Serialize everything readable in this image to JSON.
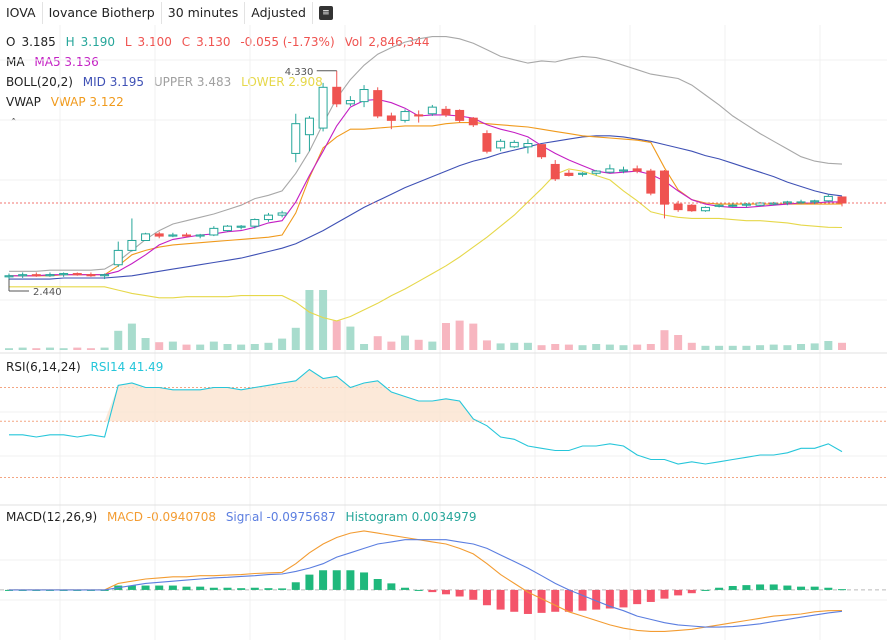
{
  "toolbar": {
    "symbol": "IOVA",
    "name": "Iovance Biotherp",
    "interval": "30 minutes",
    "adjust": "Adjusted",
    "menu_icon": "list-icon"
  },
  "ohlc": {
    "o_label": "O",
    "o": "3.185",
    "h_label": "H",
    "h": "3.190",
    "l_label": "L",
    "l": "3.100",
    "c_label": "C",
    "c": "3.130",
    "change": "-0.055 (-1.73%)",
    "vol_label": "Vol",
    "vol": "2,846,344"
  },
  "indicators": {
    "ma_label": "MA",
    "ma5": "MA5 3.136",
    "boll_label": "BOLL(20,2)",
    "boll_mid": "MID 3.195",
    "boll_upper": "UPPER 3.483",
    "boll_lower": "LOWER 2.908",
    "vwap_label": "VWAP",
    "vwap": "VWAP 3.122",
    "rsi_label": "RSI(6,14,24)",
    "rsi14": "RSI14 41.49",
    "macd_label": "MACD(12,26,9)",
    "macd": "MACD -0.0940708",
    "signal": "Signal -0.0975687",
    "histogram": "Histogram 0.0034979"
  },
  "colors": {
    "up": "#26a69a",
    "down": "#ef5350",
    "ma5": "#c41fc4",
    "boll_mid": "#3f51b5",
    "boll_upper": "#a8a8a8",
    "boll_lower": "#e6d84a",
    "vwap": "#f09a1c",
    "rsi": "#26c6da",
    "macd": "#f39c32",
    "signal": "#5b7ee0",
    "hist_up": "#1fb87c",
    "hist_down": "#f4546a",
    "grid": "#f0f0f0",
    "price_line": "#ef5350"
  },
  "chart_data": {
    "type": "candlestick",
    "price_max_label": "4.330",
    "price_min_label": "2.440",
    "price_range": [
      2.25,
      4.7
    ],
    "candles": [
      {
        "o": 2.46,
        "h": 2.49,
        "l": 2.44,
        "c": 2.47
      },
      {
        "o": 2.47,
        "h": 2.5,
        "l": 2.45,
        "c": 2.48
      },
      {
        "o": 2.48,
        "h": 2.5,
        "l": 2.46,
        "c": 2.47
      },
      {
        "o": 2.47,
        "h": 2.5,
        "l": 2.46,
        "c": 2.48
      },
      {
        "o": 2.48,
        "h": 2.5,
        "l": 2.46,
        "c": 2.49
      },
      {
        "o": 2.49,
        "h": 2.5,
        "l": 2.47,
        "c": 2.48
      },
      {
        "o": 2.48,
        "h": 2.5,
        "l": 2.46,
        "c": 2.47
      },
      {
        "o": 2.47,
        "h": 2.49,
        "l": 2.44,
        "c": 2.48
      },
      {
        "o": 2.57,
        "h": 2.78,
        "l": 2.55,
        "c": 2.7
      },
      {
        "o": 2.7,
        "h": 2.99,
        "l": 2.69,
        "c": 2.79
      },
      {
        "o": 2.79,
        "h": 2.86,
        "l": 2.79,
        "c": 2.85
      },
      {
        "o": 2.85,
        "h": 2.87,
        "l": 2.81,
        "c": 2.83
      },
      {
        "o": 2.83,
        "h": 2.86,
        "l": 2.82,
        "c": 2.84
      },
      {
        "o": 2.84,
        "h": 2.86,
        "l": 2.82,
        "c": 2.83
      },
      {
        "o": 2.83,
        "h": 2.85,
        "l": 2.81,
        "c": 2.84
      },
      {
        "o": 2.84,
        "h": 2.92,
        "l": 2.83,
        "c": 2.9
      },
      {
        "o": 2.88,
        "h": 2.93,
        "l": 2.87,
        "c": 2.92
      },
      {
        "o": 2.91,
        "h": 2.93,
        "l": 2.89,
        "c": 2.92
      },
      {
        "o": 2.92,
        "h": 2.99,
        "l": 2.9,
        "c": 2.98
      },
      {
        "o": 2.98,
        "h": 3.04,
        "l": 2.96,
        "c": 3.02
      },
      {
        "o": 3.02,
        "h": 3.06,
        "l": 3.0,
        "c": 3.04
      },
      {
        "o": 3.58,
        "h": 3.94,
        "l": 3.5,
        "c": 3.85
      },
      {
        "o": 3.75,
        "h": 3.92,
        "l": 3.6,
        "c": 3.9
      },
      {
        "o": 3.81,
        "h": 4.22,
        "l": 3.78,
        "c": 4.18
      },
      {
        "o": 4.18,
        "h": 4.33,
        "l": 4.0,
        "c": 4.03
      },
      {
        "o": 4.03,
        "h": 4.1,
        "l": 4.01,
        "c": 4.06
      },
      {
        "o": 4.05,
        "h": 4.2,
        "l": 4.0,
        "c": 4.16
      },
      {
        "o": 4.15,
        "h": 4.18,
        "l": 3.9,
        "c": 3.92
      },
      {
        "o": 3.92,
        "h": 3.95,
        "l": 3.8,
        "c": 3.88
      },
      {
        "o": 3.88,
        "h": 3.98,
        "l": 3.86,
        "c": 3.96
      },
      {
        "o": 3.93,
        "h": 3.97,
        "l": 3.86,
        "c": 3.92
      },
      {
        "o": 3.94,
        "h": 4.02,
        "l": 3.92,
        "c": 4.0
      },
      {
        "o": 3.98,
        "h": 4.01,
        "l": 3.91,
        "c": 3.93
      },
      {
        "o": 3.97,
        "h": 3.98,
        "l": 3.86,
        "c": 3.88
      },
      {
        "o": 3.9,
        "h": 3.91,
        "l": 3.82,
        "c": 3.84
      },
      {
        "o": 3.76,
        "h": 3.79,
        "l": 3.58,
        "c": 3.6
      },
      {
        "o": 3.63,
        "h": 3.71,
        "l": 3.6,
        "c": 3.69
      },
      {
        "o": 3.64,
        "h": 3.7,
        "l": 3.63,
        "c": 3.68
      },
      {
        "o": 3.64,
        "h": 3.71,
        "l": 3.58,
        "c": 3.67
      },
      {
        "o": 3.66,
        "h": 3.66,
        "l": 3.53,
        "c": 3.55
      },
      {
        "o": 3.48,
        "h": 3.52,
        "l": 3.33,
        "c": 3.35
      },
      {
        "o": 3.4,
        "h": 3.43,
        "l": 3.37,
        "c": 3.38
      },
      {
        "o": 3.39,
        "h": 3.41,
        "l": 3.37,
        "c": 3.4
      },
      {
        "o": 3.4,
        "h": 3.43,
        "l": 3.38,
        "c": 3.42
      },
      {
        "o": 3.41,
        "h": 3.48,
        "l": 3.4,
        "c": 3.44
      },
      {
        "o": 3.42,
        "h": 3.46,
        "l": 3.4,
        "c": 3.43
      },
      {
        "o": 3.44,
        "h": 3.47,
        "l": 3.4,
        "c": 3.42
      },
      {
        "o": 3.42,
        "h": 3.44,
        "l": 3.2,
        "c": 3.22
      },
      {
        "o": 3.42,
        "h": 3.43,
        "l": 2.99,
        "c": 3.12
      },
      {
        "o": 3.12,
        "h": 3.15,
        "l": 3.05,
        "c": 3.07
      },
      {
        "o": 3.11,
        "h": 3.12,
        "l": 3.05,
        "c": 3.06
      },
      {
        "o": 3.06,
        "h": 3.1,
        "l": 3.05,
        "c": 3.09
      },
      {
        "o": 3.1,
        "h": 3.12,
        "l": 3.09,
        "c": 3.11
      },
      {
        "o": 3.11,
        "h": 3.13,
        "l": 3.09,
        "c": 3.11
      },
      {
        "o": 3.11,
        "h": 3.13,
        "l": 3.09,
        "c": 3.12
      },
      {
        "o": 3.11,
        "h": 3.14,
        "l": 3.1,
        "c": 3.13
      },
      {
        "o": 3.12,
        "h": 3.14,
        "l": 3.11,
        "c": 3.13
      },
      {
        "o": 3.13,
        "h": 3.15,
        "l": 3.11,
        "c": 3.14
      },
      {
        "o": 3.14,
        "h": 3.16,
        "l": 3.12,
        "c": 3.14
      },
      {
        "o": 3.14,
        "h": 3.16,
        "l": 3.12,
        "c": 3.15
      },
      {
        "o": 3.15,
        "h": 3.21,
        "l": 3.14,
        "c": 3.19
      },
      {
        "o": 3.185,
        "h": 3.19,
        "l": 3.1,
        "c": 3.13
      }
    ],
    "volume_max": 100,
    "volume": [
      3,
      4,
      3,
      4,
      3,
      4,
      3,
      4,
      32,
      44,
      20,
      13,
      14,
      9,
      9,
      14,
      10,
      9,
      10,
      12,
      19,
      37,
      100,
      100,
      49,
      39,
      10,
      23,
      14,
      24,
      17,
      14,
      45,
      49,
      44,
      16,
      11,
      12,
      12,
      8,
      10,
      9,
      8,
      10,
      9,
      8,
      9,
      10,
      33,
      25,
      12,
      7,
      7,
      7,
      7,
      8,
      9,
      8,
      10,
      11,
      15,
      12
    ],
    "ma5": [
      2.47,
      2.47,
      2.47,
      2.48,
      2.48,
      2.48,
      2.48,
      2.48,
      2.51,
      2.58,
      2.66,
      2.75,
      2.8,
      2.82,
      2.84,
      2.85,
      2.87,
      2.88,
      2.91,
      2.95,
      2.97,
      3.14,
      3.38,
      3.6,
      3.83,
      4.0,
      4.06,
      4.07,
      4.04,
      3.99,
      3.92,
      3.93,
      3.93,
      3.92,
      3.9,
      3.84,
      3.8,
      3.77,
      3.73,
      3.65,
      3.58,
      3.52,
      3.47,
      3.42,
      3.4,
      3.41,
      3.42,
      3.39,
      3.33,
      3.24,
      3.16,
      3.12,
      3.1,
      3.09,
      3.09,
      3.1,
      3.11,
      3.12,
      3.13,
      3.13,
      3.14,
      3.14
    ],
    "boll_mid": [
      2.44,
      2.44,
      2.44,
      2.44,
      2.45,
      2.45,
      2.45,
      2.45,
      2.46,
      2.47,
      2.49,
      2.51,
      2.53,
      2.55,
      2.57,
      2.59,
      2.61,
      2.63,
      2.66,
      2.69,
      2.72,
      2.76,
      2.82,
      2.88,
      2.95,
      3.02,
      3.09,
      3.15,
      3.21,
      3.27,
      3.32,
      3.37,
      3.42,
      3.47,
      3.51,
      3.54,
      3.58,
      3.61,
      3.64,
      3.67,
      3.69,
      3.71,
      3.73,
      3.74,
      3.74,
      3.73,
      3.71,
      3.69,
      3.66,
      3.63,
      3.6,
      3.56,
      3.53,
      3.49,
      3.45,
      3.41,
      3.37,
      3.32,
      3.28,
      3.24,
      3.21,
      3.195
    ],
    "boll_upper": [
      2.51,
      2.51,
      2.51,
      2.52,
      2.52,
      2.52,
      2.52,
      2.53,
      2.6,
      2.7,
      2.8,
      2.88,
      2.94,
      2.97,
      3.0,
      3.03,
      3.07,
      3.11,
      3.17,
      3.2,
      3.24,
      3.4,
      3.6,
      3.85,
      4.08,
      4.25,
      4.38,
      4.48,
      4.54,
      4.59,
      4.62,
      4.64,
      4.64,
      4.62,
      4.58,
      4.52,
      4.46,
      4.43,
      4.4,
      4.42,
      4.41,
      4.44,
      4.46,
      4.45,
      4.42,
      4.38,
      4.34,
      4.3,
      4.28,
      4.26,
      4.2,
      4.11,
      4.02,
      3.92,
      3.84,
      3.76,
      3.69,
      3.62,
      3.55,
      3.51,
      3.49,
      3.483
    ],
    "boll_lower": [
      2.37,
      2.37,
      2.37,
      2.37,
      2.37,
      2.37,
      2.37,
      2.37,
      2.34,
      2.31,
      2.29,
      2.27,
      2.27,
      2.28,
      2.28,
      2.28,
      2.28,
      2.29,
      2.29,
      2.29,
      2.29,
      2.23,
      2.14,
      2.09,
      2.06,
      2.1,
      2.16,
      2.22,
      2.29,
      2.35,
      2.42,
      2.49,
      2.56,
      2.64,
      2.73,
      2.82,
      2.92,
      3.02,
      3.14,
      3.26,
      3.39,
      3.44,
      3.42,
      3.38,
      3.34,
      3.24,
      3.15,
      3.05,
      3.02,
      3.0,
      2.99,
      2.99,
      2.99,
      2.98,
      2.97,
      2.97,
      2.96,
      2.95,
      2.93,
      2.92,
      2.91,
      2.908
    ],
    "vwap": [
      2.47,
      2.47,
      2.47,
      2.47,
      2.48,
      2.48,
      2.48,
      2.48,
      2.56,
      2.66,
      2.7,
      2.73,
      2.75,
      2.76,
      2.77,
      2.78,
      2.79,
      2.8,
      2.81,
      2.82,
      2.84,
      3.04,
      3.36,
      3.63,
      3.73,
      3.8,
      3.8,
      3.81,
      3.82,
      3.83,
      3.83,
      3.83,
      3.85,
      3.86,
      3.86,
      3.85,
      3.84,
      3.83,
      3.82,
      3.8,
      3.78,
      3.76,
      3.74,
      3.73,
      3.72,
      3.71,
      3.7,
      3.68,
      3.45,
      3.25,
      3.16,
      3.13,
      3.12,
      3.12,
      3.12,
      3.12,
      3.12,
      3.12,
      3.12,
      3.12,
      3.12,
      3.122
    ],
    "rsi_range": [
      20,
      80
    ],
    "rsi_reference": [
      70,
      55,
      30
    ],
    "rsi14": [
      49,
      49,
      48,
      49,
      49,
      48,
      49,
      48,
      71,
      72,
      70,
      70,
      69,
      69,
      69,
      70,
      70,
      69,
      70,
      71,
      72,
      73,
      78,
      74,
      75,
      70,
      72,
      73,
      68,
      66,
      64,
      64,
      65,
      64,
      56,
      53,
      48,
      47,
      44,
      43,
      42,
      42,
      44,
      44,
      45,
      44,
      40,
      38,
      38,
      36,
      37,
      36,
      37,
      38,
      39,
      40,
      40,
      41,
      43,
      43,
      45,
      41.49
    ],
    "macd_range": [
      -0.22,
      0.32
    ],
    "macd": [
      0.0,
      0.0,
      0.0,
      0.0,
      0.0,
      0.0,
      0.0,
      0.0,
      0.03,
      0.04,
      0.05,
      0.055,
      0.06,
      0.06,
      0.065,
      0.065,
      0.068,
      0.07,
      0.075,
      0.078,
      0.08,
      0.12,
      0.17,
      0.21,
      0.24,
      0.26,
      0.27,
      0.26,
      0.25,
      0.24,
      0.23,
      0.22,
      0.21,
      0.19,
      0.165,
      0.12,
      0.07,
      0.03,
      -0.01,
      -0.04,
      -0.07,
      -0.1,
      -0.12,
      -0.14,
      -0.16,
      -0.175,
      -0.185,
      -0.19,
      -0.19,
      -0.185,
      -0.18,
      -0.17,
      -0.16,
      -0.15,
      -0.14,
      -0.13,
      -0.12,
      -0.115,
      -0.11,
      -0.1,
      -0.095,
      -0.094
    ],
    "signal": [
      0.0,
      0.0,
      0.0,
      0.0,
      0.0,
      0.0,
      0.0,
      0.0,
      0.01,
      0.02,
      0.03,
      0.035,
      0.04,
      0.045,
      0.05,
      0.055,
      0.058,
      0.062,
      0.065,
      0.07,
      0.073,
      0.085,
      0.1,
      0.12,
      0.15,
      0.17,
      0.19,
      0.21,
      0.22,
      0.23,
      0.23,
      0.23,
      0.23,
      0.22,
      0.21,
      0.19,
      0.16,
      0.13,
      0.1,
      0.065,
      0.03,
      0.0,
      -0.025,
      -0.05,
      -0.075,
      -0.095,
      -0.12,
      -0.135,
      -0.15,
      -0.16,
      -0.165,
      -0.17,
      -0.17,
      -0.168,
      -0.162,
      -0.155,
      -0.145,
      -0.135,
      -0.125,
      -0.115,
      -0.105,
      -0.0976
    ]
  }
}
